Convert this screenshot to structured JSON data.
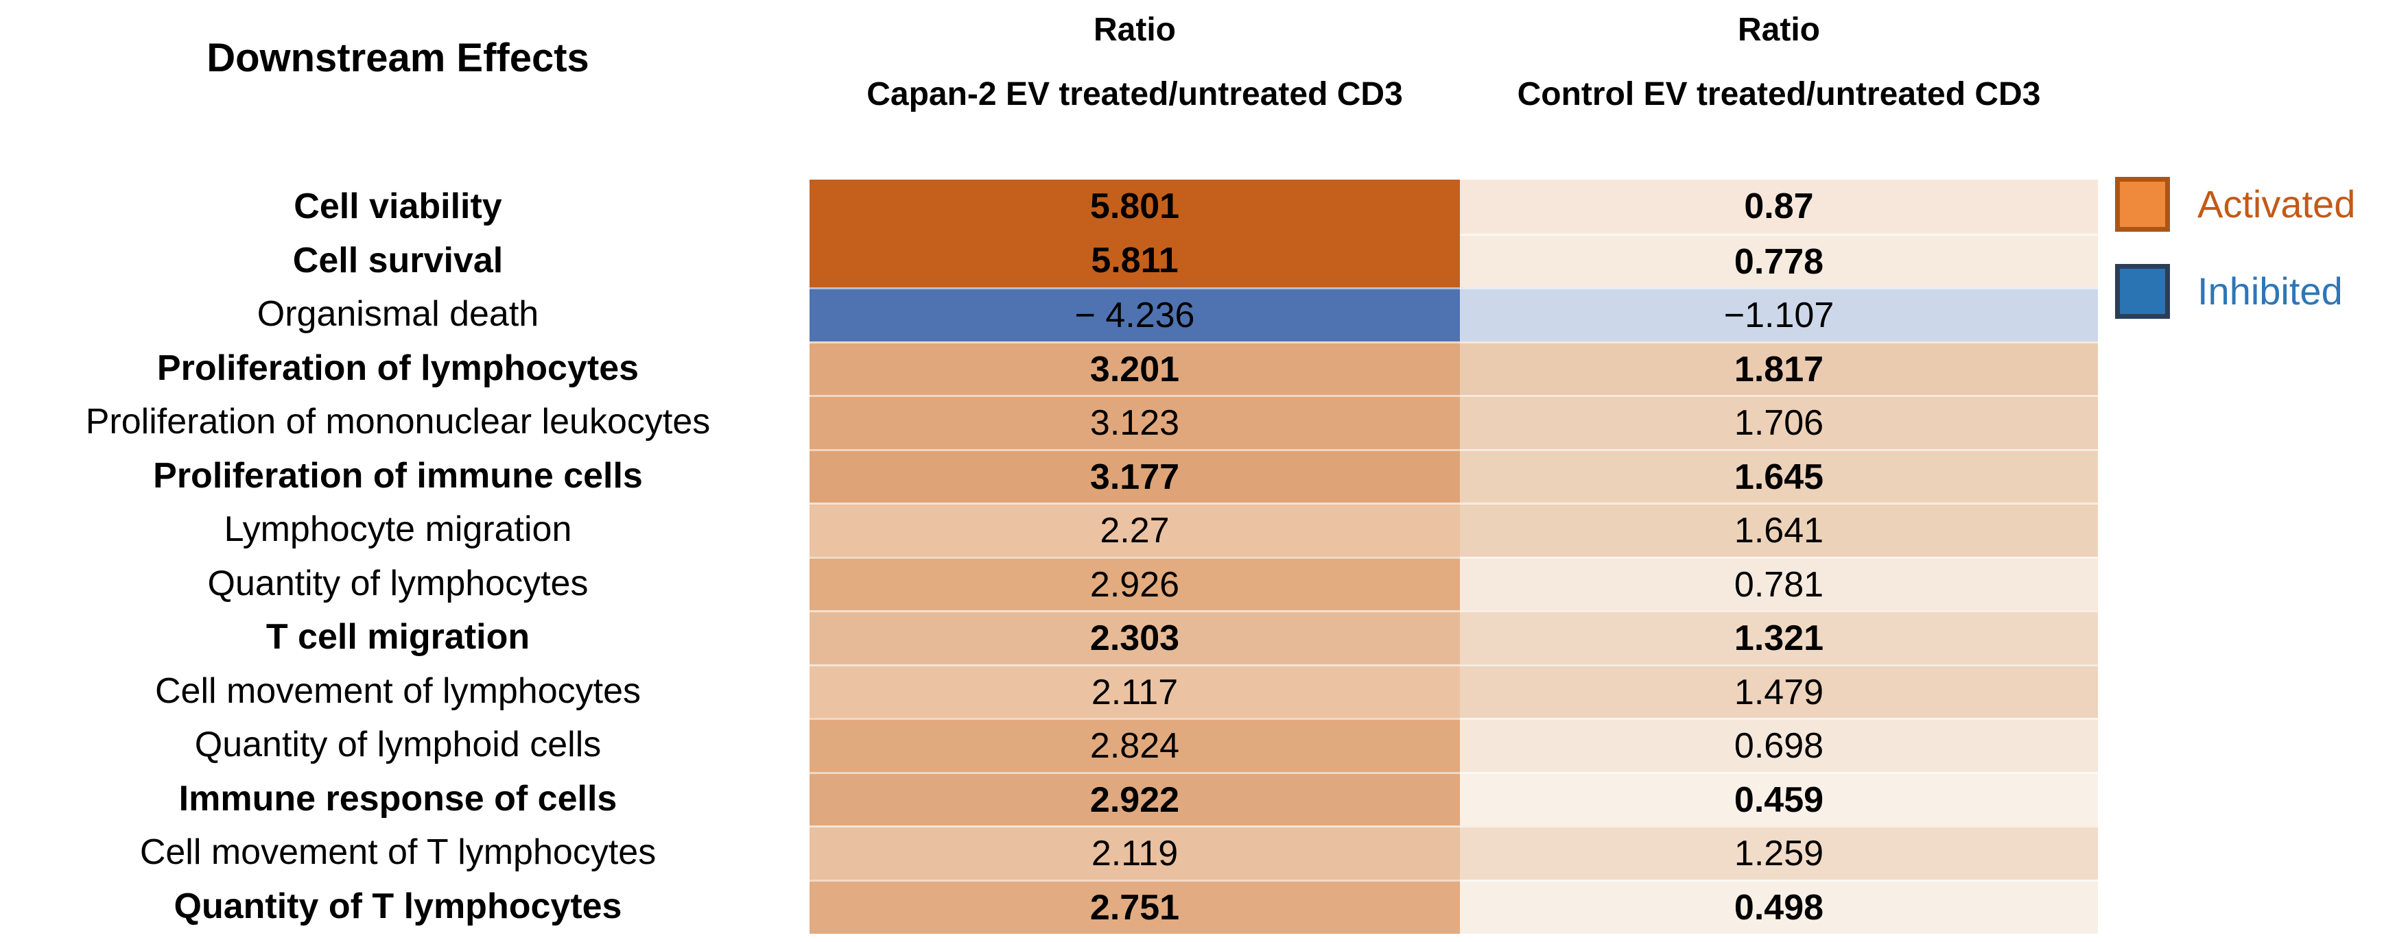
{
  "chart_data": {
    "type": "heatmap",
    "title": "Downstream Effects",
    "col_headers": [
      {
        "line1": "Ratio",
        "line2": "Capan-2 EV treated/untreated CD3"
      },
      {
        "line1": "Ratio",
        "line2": "Control EV treated/untreated CD3"
      }
    ],
    "categories": [
      "Cell viability",
      "Cell survival",
      "Organismal death",
      "Proliferation of lymphocytes",
      "Proliferation of mononuclear leukocytes",
      "Proliferation of immune cells",
      "Lymphocyte migration",
      "Quantity of lymphocytes",
      "T cell migration",
      "Cell movement of lymphocytes",
      "Quantity of lymphoid cells",
      "Immune response of cells",
      "Cell movement of T lymphocytes",
      "Quantity of T lymphocytes"
    ],
    "series": [
      {
        "name": "Capan-2 EV treated/untreated CD3",
        "values": [
          5.801,
          5.811,
          -4.236,
          3.201,
          3.123,
          3.177,
          2.27,
          2.926,
          2.303,
          2.117,
          2.824,
          2.922,
          2.119,
          2.751
        ]
      },
      {
        "name": "Control EV treated/untreated CD3",
        "values": [
          0.87,
          0.778,
          -1.107,
          1.817,
          1.706,
          1.645,
          1.641,
          0.781,
          1.321,
          1.479,
          0.698,
          0.459,
          1.259,
          0.498
        ]
      }
    ],
    "rows": [
      {
        "label": "Cell viability",
        "bold": true,
        "display": [
          "5.801",
          "0.87"
        ],
        "colors": [
          "#C4601C",
          "#F6E7DA"
        ]
      },
      {
        "label": "Cell survival",
        "bold": true,
        "display": [
          "5.811",
          "0.778"
        ],
        "colors": [
          "#C4601C",
          "#F7EADF"
        ]
      },
      {
        "label": "Organismal death",
        "bold": false,
        "display": [
          "− 4.236",
          "−1.107"
        ],
        "colors": [
          "#4F73B0",
          "#CCD8E9"
        ]
      },
      {
        "label": "Proliferation of lymphocytes",
        "bold": true,
        "display": [
          "3.201",
          "1.817"
        ],
        "colors": [
          "#E0A77C",
          "#EACBB0"
        ]
      },
      {
        "label": "Proliferation of mononuclear leukocytes",
        "bold": false,
        "display": [
          "3.123",
          "1.706"
        ],
        "colors": [
          "#E0A77C",
          "#ECD0B7"
        ]
      },
      {
        "label": "Proliferation of immune cells",
        "bold": true,
        "display": [
          "3.177",
          "1.645"
        ],
        "colors": [
          "#DEA377",
          "#EDD2BA"
        ]
      },
      {
        "label": "Lymphocyte migration",
        "bold": false,
        "display": [
          "2.27",
          "1.641"
        ],
        "colors": [
          "#EBC2A2",
          "#EDD2BA"
        ]
      },
      {
        "label": "Quantity of lymphocytes",
        "bold": false,
        "display": [
          "2.926",
          "0.781"
        ],
        "colors": [
          "#E2AB80",
          "#F6E9DD"
        ]
      },
      {
        "label": "T cell migration",
        "bold": true,
        "display": [
          "2.303",
          "1.321"
        ],
        "colors": [
          "#E7BA97",
          "#F0D9C4"
        ]
      },
      {
        "label": "Cell movement of lymphocytes",
        "bold": false,
        "display": [
          "2.117",
          "1.479"
        ],
        "colors": [
          "#EBC3A3",
          "#EED3BD"
        ]
      },
      {
        "label": "Quantity of lymphoid cells",
        "bold": false,
        "display": [
          "2.824",
          "0.698"
        ],
        "colors": [
          "#E1A97E",
          "#F5E7DA"
        ]
      },
      {
        "label": "Immune response of cells",
        "bold": true,
        "display": [
          "2.922",
          "0.459"
        ],
        "colors": [
          "#DFA87E",
          "#F9F0E8"
        ]
      },
      {
        "label": "Cell movement of T lymphocytes",
        "bold": false,
        "display": [
          "2.119",
          "1.259"
        ],
        "colors": [
          "#E9C0A0",
          "#F1DCC9"
        ]
      },
      {
        "label": "Quantity of T lymphocytes",
        "bold": true,
        "display": [
          "2.751",
          "0.498"
        ],
        "colors": [
          "#E2AB81",
          "#F8EFE6"
        ]
      }
    ],
    "legend": [
      {
        "label": "Activated",
        "swatch_fill": "#EF8A3D",
        "swatch_border": "#AC5616",
        "text_color": "#C25A18"
      },
      {
        "label": "Inhibited",
        "swatch_fill": "#2B74B4",
        "swatch_border": "#2C3E55",
        "text_color": "#2E76B7"
      }
    ],
    "layout_hints": {
      "legend_position": "right",
      "grid": false,
      "negative_color": "blue",
      "positive_color": "orange"
    }
  }
}
